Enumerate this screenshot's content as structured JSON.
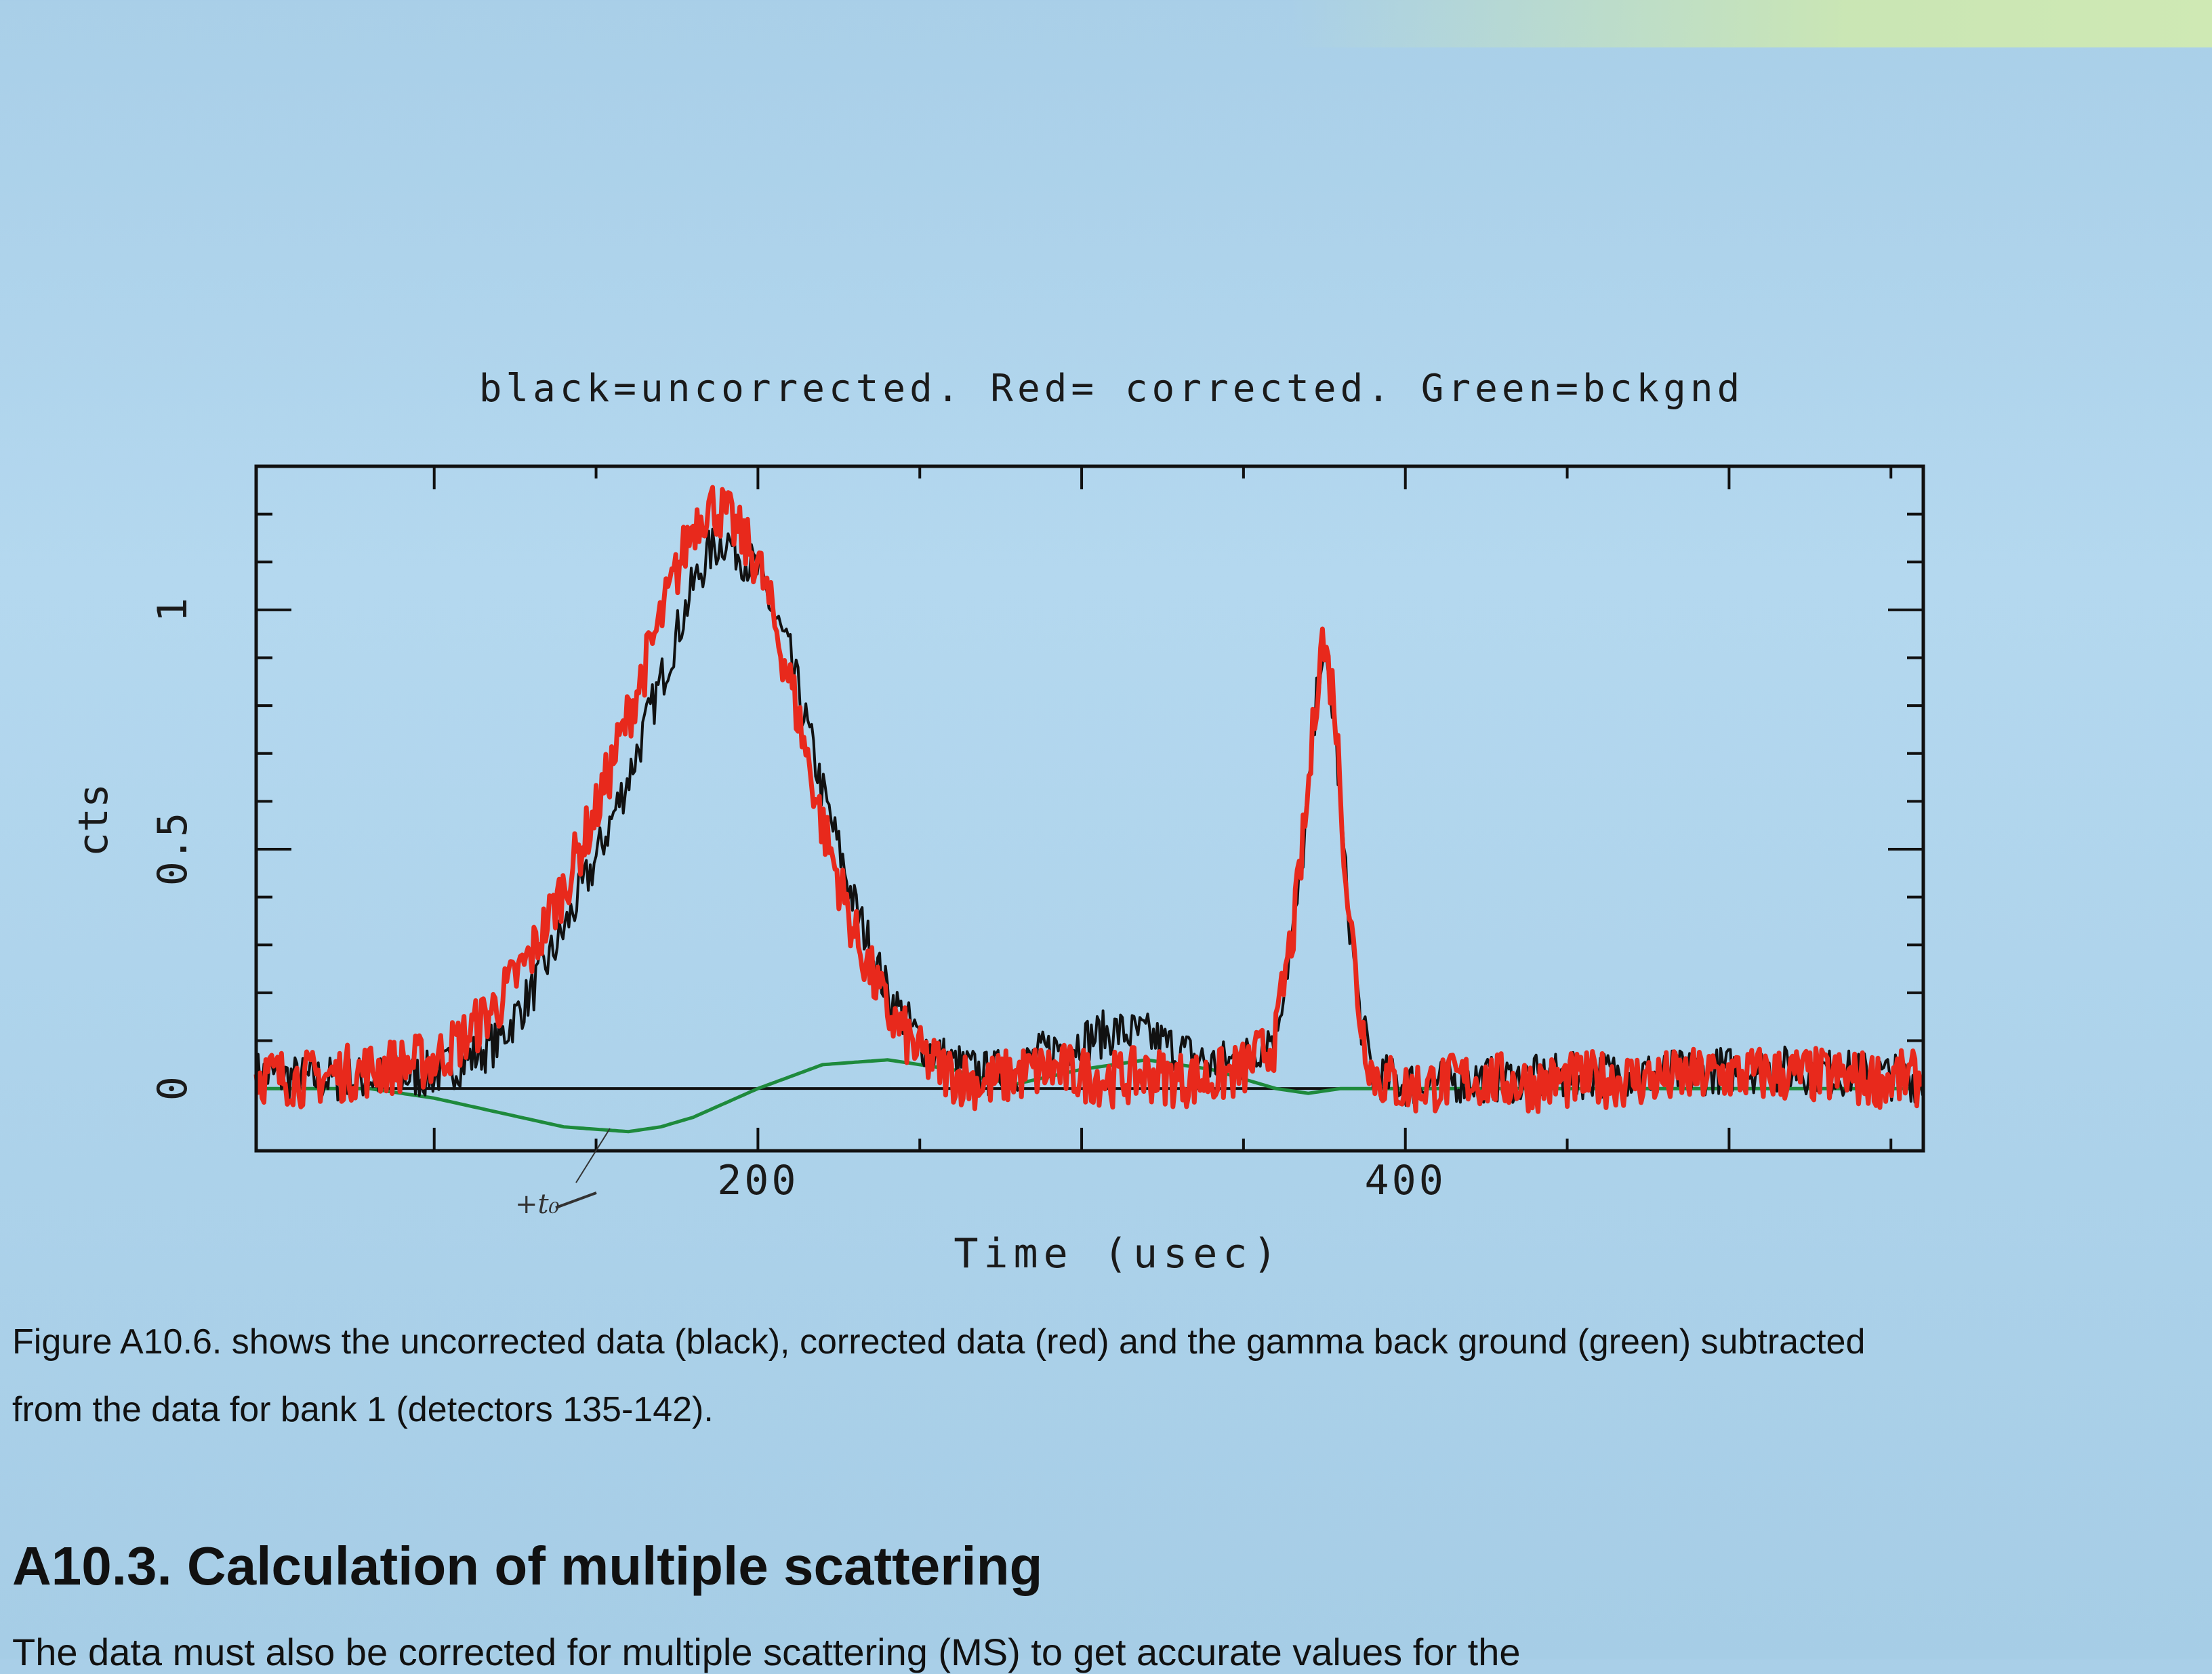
{
  "chart_data": {
    "type": "line",
    "title": "black=uncorrected. Red= corrected. Green=bckgnd",
    "xlabel": "Time (usec)",
    "ylabel": "cts",
    "xlim": [
      45,
      560
    ],
    "ylim": [
      -0.13,
      1.3
    ],
    "xticks": [
      200,
      400
    ],
    "yticks": [
      0,
      0.5,
      1
    ],
    "grid": false,
    "colors": {
      "uncorrected": "#111111",
      "corrected": "#e8291c",
      "background": "#1e8a3c"
    },
    "series": [
      {
        "key": "uncorrected",
        "x": [
          45,
          60,
          80,
          100,
          110,
          120,
          130,
          140,
          150,
          160,
          170,
          180,
          185,
          190,
          200,
          210,
          220,
          230,
          240,
          250,
          260,
          270,
          280,
          290,
          300,
          310,
          320,
          330,
          340,
          350,
          360,
          362,
          366,
          370,
          374,
          378,
          382,
          386,
          390,
          400,
          420,
          440,
          460,
          480,
          500,
          520,
          540,
          560
        ],
        "y": [
          0.03,
          0.02,
          0.02,
          0.03,
          0.06,
          0.1,
          0.2,
          0.33,
          0.48,
          0.65,
          0.85,
          1.05,
          1.12,
          1.15,
          1.08,
          0.9,
          0.62,
          0.38,
          0.2,
          0.1,
          0.05,
          0.03,
          0.04,
          0.08,
          0.1,
          0.12,
          0.11,
          0.08,
          0.05,
          0.06,
          0.12,
          0.2,
          0.35,
          0.6,
          0.92,
          0.78,
          0.4,
          0.15,
          0.03,
          0.01,
          0.02,
          0.02,
          0.03,
          0.03,
          0.04,
          0.04,
          0.03,
          0.02
        ]
      },
      {
        "key": "corrected",
        "x": [
          45,
          60,
          80,
          100,
          110,
          120,
          130,
          140,
          150,
          160,
          170,
          180,
          185,
          190,
          200,
          210,
          220,
          230,
          240,
          250,
          260,
          270,
          280,
          290,
          300,
          310,
          320,
          330,
          340,
          350,
          360,
          362,
          366,
          370,
          374,
          378,
          382,
          386,
          390,
          400,
          420,
          440,
          460,
          480,
          500,
          520,
          540,
          560
        ],
        "y": [
          0.03,
          0.02,
          0.04,
          0.06,
          0.11,
          0.18,
          0.28,
          0.42,
          0.58,
          0.78,
          0.98,
          1.18,
          1.22,
          1.2,
          1.1,
          0.85,
          0.55,
          0.32,
          0.16,
          0.07,
          0.03,
          0.01,
          0.03,
          0.04,
          0.03,
          0.02,
          0.03,
          0.02,
          0.02,
          0.04,
          0.1,
          0.2,
          0.36,
          0.62,
          0.95,
          0.82,
          0.42,
          0.15,
          0.03,
          0.0,
          0.02,
          0.01,
          0.02,
          0.02,
          0.03,
          0.03,
          0.02,
          0.02
        ]
      },
      {
        "key": "background",
        "x": [
          45,
          60,
          80,
          100,
          120,
          140,
          160,
          170,
          180,
          200,
          220,
          240,
          260,
          270,
          280,
          300,
          320,
          340,
          350,
          360,
          370,
          380,
          400,
          440,
          480,
          520,
          560
        ],
        "y": [
          0.0,
          0.0,
          0.0,
          -0.02,
          -0.05,
          -0.08,
          -0.09,
          -0.08,
          -0.06,
          0.0,
          0.05,
          0.06,
          0.04,
          0.02,
          0.01,
          0.04,
          0.06,
          0.04,
          0.02,
          0.0,
          -0.01,
          0.0,
          0.0,
          0.0,
          0.0,
          0.0,
          0.0
        ]
      }
    ],
    "noise": {
      "uncorrected": {
        "amplitude": 0.05,
        "step": 0.6
      },
      "corrected": {
        "amplitude": 0.06,
        "step": 0.6
      }
    },
    "annotations": [
      "+t₀"
    ]
  },
  "caption": "Figure A10.6. shows the uncorrected data (black), corrected data (red) and the gamma back ground (green) subtracted from the data for bank 1 (detectors 135-142).",
  "section": {
    "heading": "A10.3. Calculation of multiple scattering",
    "body_start": "The data must also be corrected for multiple scattering (MS) to get accurate values for the"
  }
}
